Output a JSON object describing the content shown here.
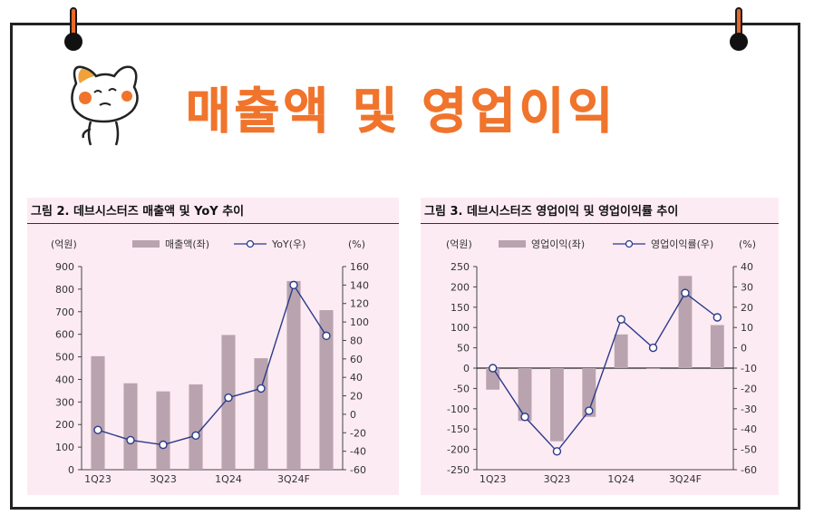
{
  "page": {
    "title": "매출액 및 영업이익"
  },
  "chart_data": [
    {
      "type": "bar",
      "title": "그림 2. 데브시스터즈 매출액 및 YoY 추이",
      "left_unit": "(억원)",
      "right_unit": "(%)",
      "categories": [
        "1Q23",
        "2Q23",
        "3Q23",
        "4Q23",
        "1Q24",
        "2Q24",
        "3Q24F",
        "4Q24F"
      ],
      "x_tick_labels": [
        "1Q23",
        "",
        "3Q23",
        "",
        "1Q24",
        "",
        "3Q24F",
        ""
      ],
      "series": [
        {
          "name": "매출액(좌)",
          "kind": "bar",
          "axis": "left",
          "values": [
            503,
            383,
            347,
            378,
            597,
            494,
            836,
            707
          ],
          "color": "#b9a3ae"
        },
        {
          "name": "YoY(우)",
          "kind": "line",
          "axis": "right",
          "values": [
            -17,
            -28,
            -33,
            -23,
            18,
            28,
            140,
            85
          ],
          "color": "#2b3a8c"
        }
      ],
      "left_ylim": [
        0,
        900
      ],
      "left_ticks": [
        0,
        100,
        200,
        300,
        400,
        500,
        600,
        700,
        800,
        900
      ],
      "right_ylim": [
        -60,
        160
      ],
      "right_ticks": [
        -60,
        -40,
        -20,
        0,
        20,
        40,
        60,
        80,
        100,
        120,
        140,
        160
      ],
      "legend_position": "top"
    },
    {
      "type": "bar",
      "title": "그림 3. 데브시스터즈 영업이익 및 영업이익률 추이",
      "left_unit": "(억원)",
      "right_unit": "(%)",
      "categories": [
        "1Q23",
        "2Q23",
        "3Q23",
        "4Q23",
        "1Q24",
        "2Q24",
        "3Q24F",
        "4Q24F"
      ],
      "x_tick_labels": [
        "1Q23",
        "",
        "3Q23",
        "",
        "1Q24",
        "",
        "3Q24F",
        ""
      ],
      "series": [
        {
          "name": "영업이익(좌)",
          "kind": "bar",
          "axis": "left",
          "values": [
            -53,
            -130,
            -180,
            -120,
            83,
            -2,
            227,
            106
          ],
          "color": "#b9a3ae"
        },
        {
          "name": "영업이익률(우)",
          "kind": "line",
          "axis": "right",
          "values": [
            -10,
            -34,
            -51,
            -31,
            14,
            0,
            27,
            15
          ],
          "color": "#2b3a8c"
        }
      ],
      "left_ylim": [
        -250,
        250
      ],
      "left_ticks": [
        -250,
        -200,
        -150,
        -100,
        -50,
        0,
        50,
        100,
        150,
        200,
        250
      ],
      "right_ylim": [
        -60,
        40
      ],
      "right_ticks": [
        -60,
        -50,
        -40,
        -30,
        -20,
        -10,
        0,
        10,
        20,
        30,
        40
      ],
      "legend_position": "top"
    }
  ]
}
